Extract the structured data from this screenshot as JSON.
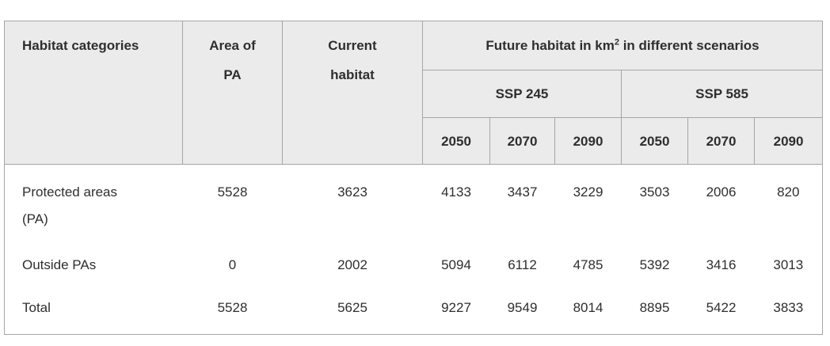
{
  "colors": {
    "header_bg": "#ebebeb",
    "border": "#a6a6a6",
    "text": "#2e2e2e",
    "body_bg": "#ffffff"
  },
  "chart_data": {
    "type": "table",
    "header": {
      "habitat_categories": "Habitat categories",
      "area_of_pa": "Area of PA",
      "current_habitat": "Current habitat",
      "future_group": {
        "prefix": "Future habitat in km",
        "sup": "2",
        "suffix": " in different scenarios"
      },
      "scenario_groups": [
        "SSP 245",
        "SSP 585"
      ],
      "years": [
        "2050",
        "2070",
        "2090",
        "2050",
        "2070",
        "2090"
      ]
    },
    "rows": [
      {
        "label": "Protected areas (PA)",
        "area_of_pa": "5528",
        "current_habitat": "3623",
        "ssp245": [
          "4133",
          "3437",
          "3229"
        ],
        "ssp585": [
          "3503",
          "2006",
          "820"
        ]
      },
      {
        "label": "Outside PAs",
        "area_of_pa": "0",
        "current_habitat": "2002",
        "ssp245": [
          "5094",
          "6112",
          "4785"
        ],
        "ssp585": [
          "5392",
          "3416",
          "3013"
        ]
      },
      {
        "label": "Total",
        "area_of_pa": "5528",
        "current_habitat": "5625",
        "ssp245": [
          "9227",
          "9549",
          "8014"
        ],
        "ssp585": [
          "8895",
          "5422",
          "3833"
        ]
      }
    ]
  }
}
